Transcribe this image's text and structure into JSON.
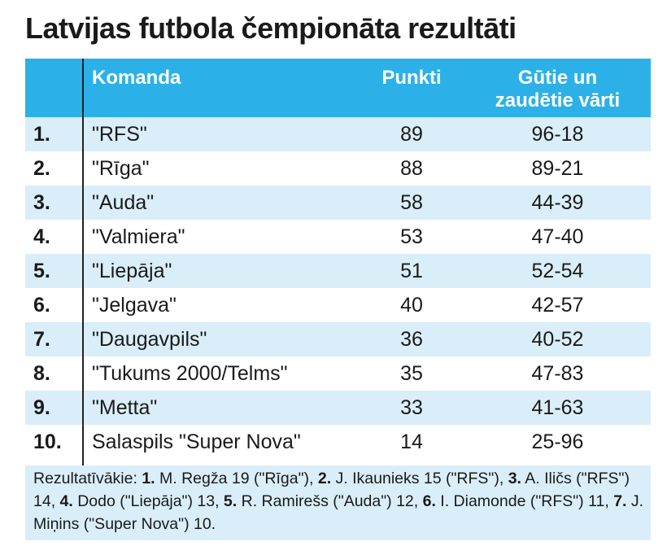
{
  "title": "Latvijas futbola čempionāta rezultāti",
  "header": {
    "team": "Komanda",
    "points": "Punkti",
    "goals_line1": "Gūtie un",
    "goals_line2": "zaudētie vārti"
  },
  "rows": [
    {
      "rank": "1.",
      "team": "\"RFS\"",
      "points": "89",
      "goals": "96-18"
    },
    {
      "rank": "2.",
      "team": "\"Rīga\"",
      "points": "88",
      "goals": "89-21"
    },
    {
      "rank": "3.",
      "team": "\"Auda\"",
      "points": "58",
      "goals": "44-39"
    },
    {
      "rank": "4.",
      "team": "\"Valmiera\"",
      "points": "53",
      "goals": "47-40"
    },
    {
      "rank": "5.",
      "team": "\"Liepāja\"",
      "points": "51",
      "goals": "52-54"
    },
    {
      "rank": "6.",
      "team": "\"Jelgava\"",
      "points": "40",
      "goals": "42-57"
    },
    {
      "rank": "7.",
      "team": "\"Daugavpils\"",
      "points": "36",
      "goals": "40-52"
    },
    {
      "rank": "8.",
      "team": "\"Tukums 2000/Telms\"",
      "points": "35",
      "goals": "47-83"
    },
    {
      "rank": "9.",
      "team": "\"Metta\"",
      "points": "33",
      "goals": "41-63"
    },
    {
      "rank": "10.",
      "team": "Salaspils \"Super Nova\"",
      "points": "14",
      "goals": "25-96"
    }
  ],
  "footer": {
    "label": "Rezultatīvākie:",
    "scorers": [
      {
        "num": "1.",
        "text": " M. Regža 19 (\"Rīga\"), "
      },
      {
        "num": "2.",
        "text": " J. Ikaunieks 15 (\"RFS\"), "
      },
      {
        "num": "3.",
        "text": " A. Iličs (\"RFS\") 14, "
      },
      {
        "num": "4.",
        "text": " Dodo (\"Liepāja\") 13, "
      },
      {
        "num": "5.",
        "text": " R. Ramirešs (\"Auda\") 12, "
      },
      {
        "num": "6.",
        "text": " I. Diamonde (\"RFS\") 11, "
      },
      {
        "num": "7.",
        "text": " J. Miņins (\"Super Nova\") 10."
      }
    ]
  },
  "colors": {
    "header_bg": "#2bb1e8",
    "stripe_bg": "#d9eef9"
  }
}
